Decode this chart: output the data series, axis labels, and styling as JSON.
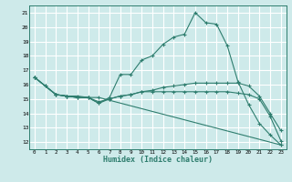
{
  "xlabel": "Humidex (Indice chaleur)",
  "bg_color": "#ceeaea",
  "grid_color": "#ffffff",
  "line_color": "#2e7d6e",
  "xlim": [
    -0.5,
    23.5
  ],
  "ylim": [
    11.5,
    21.5
  ],
  "xticks": [
    0,
    1,
    2,
    3,
    4,
    5,
    6,
    7,
    8,
    9,
    10,
    11,
    12,
    13,
    14,
    15,
    16,
    17,
    18,
    19,
    20,
    21,
    22,
    23
  ],
  "yticks": [
    12,
    13,
    14,
    15,
    16,
    17,
    18,
    19,
    20,
    21
  ],
  "lines": [
    {
      "x": [
        0,
        1,
        2,
        3,
        4,
        5,
        6,
        7,
        8,
        9,
        10,
        11,
        12,
        13,
        14,
        15,
        16,
        17,
        18,
        19,
        20,
        21,
        22,
        23
      ],
      "y": [
        16.5,
        15.9,
        15.3,
        15.2,
        15.1,
        15.1,
        14.7,
        15.1,
        16.7,
        16.7,
        17.7,
        18.0,
        18.8,
        19.3,
        19.5,
        21.0,
        20.3,
        20.2,
        18.7,
        16.2,
        14.6,
        13.3,
        12.5,
        11.8
      ]
    },
    {
      "x": [
        0,
        1,
        2,
        3,
        4,
        5,
        6,
        7,
        8,
        9,
        10,
        11,
        12,
        13,
        14,
        15,
        16,
        17,
        18,
        19,
        20,
        21,
        22,
        23
      ],
      "y": [
        16.5,
        15.9,
        15.3,
        15.2,
        15.2,
        15.1,
        14.7,
        15.0,
        15.2,
        15.3,
        15.5,
        15.6,
        15.8,
        15.9,
        16.0,
        16.1,
        16.1,
        16.1,
        16.1,
        16.1,
        15.9,
        15.2,
        14.0,
        12.8
      ]
    },
    {
      "x": [
        0,
        2,
        3,
        4,
        5,
        6,
        7,
        8,
        9,
        10,
        11,
        12,
        13,
        14,
        15,
        16,
        17,
        18,
        19,
        20,
        21,
        22,
        23
      ],
      "y": [
        16.5,
        15.3,
        15.2,
        15.1,
        15.1,
        14.8,
        15.0,
        15.2,
        15.3,
        15.5,
        15.5,
        15.5,
        15.5,
        15.5,
        15.5,
        15.5,
        15.5,
        15.5,
        15.4,
        15.3,
        15.0,
        13.8,
        12.1
      ]
    },
    {
      "x": [
        0,
        2,
        3,
        4,
        5,
        6,
        23
      ],
      "y": [
        16.5,
        15.3,
        15.2,
        15.1,
        15.1,
        15.1,
        11.8
      ]
    }
  ]
}
